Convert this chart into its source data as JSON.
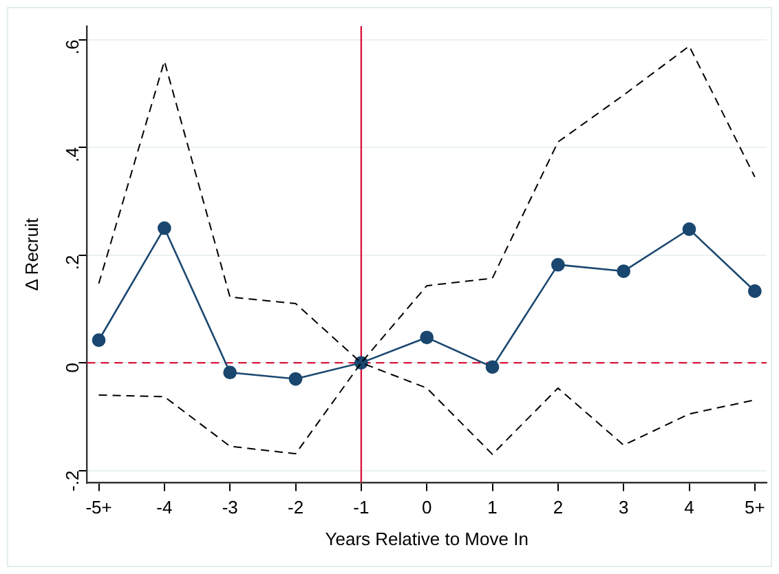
{
  "chart_data": {
    "type": "line",
    "xlabel": "Years Relative to Move In",
    "ylabel": "Δ Recruit",
    "categories": [
      "-5+",
      "-4",
      "-3",
      "-2",
      "-1",
      "0",
      "1",
      "2",
      "3",
      "4",
      "5+"
    ],
    "series": [
      {
        "color": "#000000",
        "marker": "none",
        "line_style": "dashed",
        "values": [
          0.147,
          0.56,
          0.122,
          0.11,
          0,
          0.143,
          0.157,
          0.41,
          0.497,
          0.588,
          0.345
        ]
      },
      {
        "color": "#000000",
        "marker": "none",
        "line_style": "dashed",
        "values": [
          -0.06,
          -0.063,
          -0.155,
          -0.169,
          0,
          -0.047,
          -0.17,
          -0.047,
          -0.153,
          -0.095,
          -0.069
        ]
      },
      {
        "color": "#1a476f",
        "marker": "circle",
        "line_style": "solid",
        "values": [
          0.042,
          0.25,
          -0.018,
          -0.03,
          0,
          0.047,
          -0.008,
          0.182,
          0.17,
          0.248,
          0.133
        ]
      }
    ],
    "ylim": [
      -0.223,
      0.625
    ],
    "yticks": [
      {
        "value": -0.2,
        "label": "-.2"
      },
      0,
      {
        "value": 0.2,
        "label": ".2"
      },
      {
        "value": 0.4,
        "label": ".4"
      },
      {
        "value": 0.6,
        "label": ".6"
      }
    ],
    "grid": "y",
    "legend": false,
    "ref_lines": [
      {
        "axis": "x",
        "value": "-1",
        "color": "#d7163c",
        "line_style": "solid"
      },
      {
        "axis": "y",
        "value": 0,
        "color": "#d7163c",
        "line_style": "dashed"
      }
    ]
  }
}
